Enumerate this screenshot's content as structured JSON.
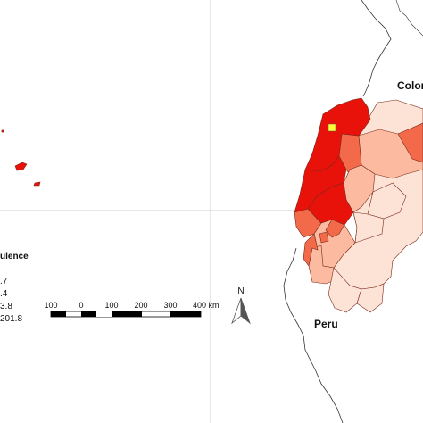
{
  "map": {
    "labels": {
      "colombia": "Colom",
      "peru": "Peru"
    },
    "legend": {
      "title": "ulence",
      "items": [
        {
          "label": ".7",
          "color": "#fde0d2"
        },
        {
          "label": ".4",
          "color": "#fcbba1"
        },
        {
          "label": "3.8",
          "color": "#f26a4a"
        },
        {
          "label": "201.8",
          "color": "#e8120b"
        }
      ]
    },
    "scale_bar": {
      "ticks": [
        "100",
        "0",
        "100",
        "200",
        "300",
        "400 km"
      ]
    },
    "north_arrow": {
      "label": "N"
    },
    "highlight_marker": {
      "color": "#ffff33"
    },
    "colors": {
      "low": "#fde3d6",
      "low_mid": "#fcbba1",
      "mid": "#f26a4a",
      "high": "#e8120b",
      "border": "#7a2a1a"
    }
  }
}
